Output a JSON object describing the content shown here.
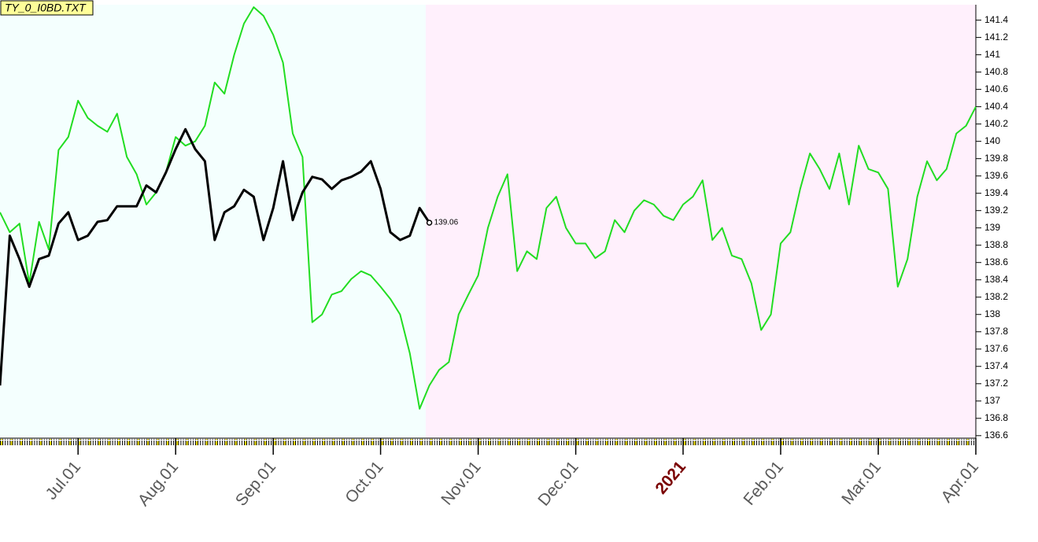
{
  "chart_data": {
    "type": "line",
    "title": "TY_0_I0BD.TXT",
    "categories": [
      null,
      null,
      null,
      null,
      null,
      null,
      null,
      null,
      "Jul.01",
      null,
      null,
      null,
      null,
      null,
      null,
      null,
      null,
      null,
      "Aug.01",
      null,
      null,
      null,
      null,
      null,
      null,
      null,
      null,
      null,
      "Sep.01",
      null,
      null,
      null,
      null,
      null,
      null,
      null,
      null,
      null,
      null,
      "Oct.01",
      null,
      null,
      null,
      null,
      null,
      null,
      null,
      null,
      null,
      "Nov.01",
      null,
      null,
      null,
      null,
      null,
      null,
      null,
      null,
      null,
      "Dec.01",
      null,
      null,
      null,
      null,
      null,
      null,
      null,
      null,
      null,
      null,
      "2021",
      null,
      null,
      null,
      null,
      null,
      null,
      null,
      null,
      null,
      "Feb.01",
      null,
      null,
      null,
      null,
      null,
      null,
      null,
      null,
      null,
      "Mar.01",
      null,
      null,
      null,
      null,
      null,
      null,
      null,
      null,
      null,
      "Apr.01"
    ],
    "series": [
      {
        "color": "#22dd22",
        "values": [
          139.18,
          138.95,
          139.05,
          138.36,
          139.07,
          138.75,
          139.9,
          140.05,
          140.47,
          140.27,
          140.18,
          140.11,
          140.32,
          139.82,
          139.62,
          139.27,
          139.41,
          139.64,
          140.05,
          139.95,
          140.0,
          140.18,
          140.68,
          140.55,
          141.0,
          141.36,
          141.55,
          141.45,
          141.23,
          140.91,
          140.09,
          139.82,
          137.91,
          138.0,
          138.23,
          138.27,
          138.41,
          138.5,
          138.45,
          138.32,
          138.18,
          138.0,
          137.55,
          136.91,
          137.18,
          137.36,
          137.45,
          138.0,
          138.23,
          138.45,
          139.0,
          139.36,
          139.62,
          138.5,
          138.73,
          138.64,
          139.23,
          139.36,
          139.0,
          138.82,
          138.82,
          138.65,
          138.73,
          139.09,
          138.95,
          139.2,
          139.32,
          139.27,
          139.14,
          139.09,
          139.27,
          139.36,
          139.55,
          138.86,
          139.0,
          138.68,
          138.64,
          138.36,
          137.82,
          138.0,
          138.82,
          138.95,
          139.45,
          139.86,
          139.68,
          139.45,
          139.86,
          139.27,
          139.95,
          139.68,
          139.64,
          139.45,
          138.32,
          138.64,
          139.36,
          139.77,
          139.55,
          139.68,
          140.09,
          140.18,
          140.4
        ]
      },
      {
        "color": "#000000",
        "values": [
          137.18,
          138.91,
          138.64,
          138.32,
          138.64,
          138.68,
          139.05,
          139.18,
          138.86,
          138.91,
          139.07,
          139.09,
          139.25,
          139.25,
          139.25,
          139.49,
          139.41,
          139.64,
          139.91,
          140.14,
          139.91,
          139.77,
          138.86,
          139.18,
          139.25,
          139.44,
          139.36,
          138.86,
          139.23,
          139.77,
          139.09,
          139.41,
          139.59,
          139.56,
          139.45,
          139.55,
          139.59,
          139.65,
          139.77,
          139.45,
          138.95,
          138.86,
          138.91,
          139.23,
          139.06,
          null,
          null,
          null,
          null,
          null,
          null,
          null,
          null,
          null,
          null,
          null,
          null,
          null,
          null,
          null,
          null,
          null,
          null,
          null,
          null,
          null,
          null,
          null,
          null,
          null,
          null,
          null,
          null,
          null,
          null,
          null,
          null,
          null,
          null,
          null,
          null,
          null,
          null,
          null,
          null,
          null,
          null,
          null,
          null,
          null,
          null,
          null,
          null,
          null,
          null,
          null,
          null,
          null,
          null,
          null,
          null
        ]
      }
    ],
    "ylim": [
      136.58,
      141.56
    ],
    "yticks": [
      136.6,
      136.8,
      137,
      137.2,
      137.4,
      137.6,
      137.8,
      138,
      138.2,
      138.4,
      138.6,
      138.8,
      139,
      139.2,
      139.4,
      139.6,
      139.8,
      140,
      140.2,
      140.4,
      140.6,
      140.8,
      141,
      141.2,
      141.4
    ],
    "value_label_index": 44
  }
}
